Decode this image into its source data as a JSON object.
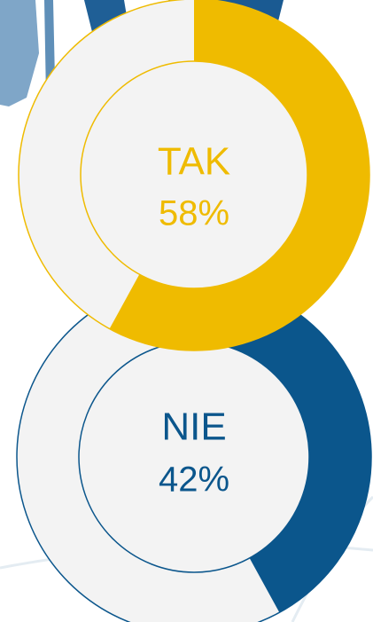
{
  "chart_data": [
    {
      "type": "donut",
      "label": "NIE",
      "values": [
        42
      ],
      "value_labels": [
        "42%"
      ],
      "color": "#0b568c"
    },
    {
      "type": "donut",
      "label": "TAK",
      "values": [
        58
      ],
      "value_labels": [
        "58%"
      ],
      "color": "#efbb00"
    }
  ]
}
